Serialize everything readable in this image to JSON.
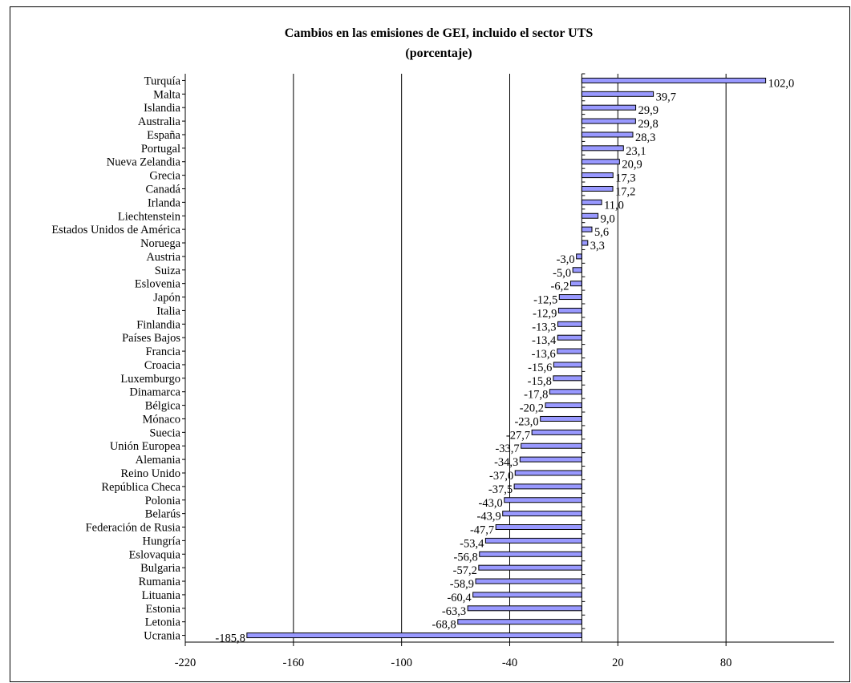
{
  "chart_data": {
    "type": "bar",
    "orientation": "horizontal",
    "title": "Cambios en las emisiones de GEI, incluido el sector UTS",
    "subtitle": "(porcentaje)",
    "xlabel": "",
    "ylabel": "",
    "xlim": [
      -220,
      140
    ],
    "x_ticks": [
      -220,
      -160,
      -100,
      -40,
      20,
      80
    ],
    "x_tick_labels": [
      "-220",
      "-160",
      "-100",
      "-40",
      "20",
      "80"
    ],
    "grid": "vertical",
    "legend": "none",
    "bar_color": "#9999ff",
    "categories": [
      "Turquía",
      "Malta",
      "Islandia",
      "Australia",
      "España",
      "Portugal",
      "Nueva Zelandia",
      "Grecia",
      "Canadá",
      "Irlanda",
      "Liechtenstein",
      "Estados Unidos de América",
      "Noruega",
      "Austria",
      "Suiza",
      "Eslovenia",
      "Japón",
      "Italia",
      "Finlandia",
      "Países Bajos",
      "Francia",
      "Croacia",
      "Luxemburgo",
      "Dinamarca",
      "Bélgica",
      "Mónaco",
      "Suecia",
      "Unión Europea",
      "Alemania",
      "Reino Unido",
      "República Checa",
      "Polonia",
      "Belarús",
      "Federación de Rusia",
      "Hungría",
      "Eslovaquia",
      "Bulgaria",
      "Rumania",
      "Lituania",
      "Estonia",
      "Letonia",
      "Ucrania"
    ],
    "values": [
      102.0,
      39.7,
      29.9,
      29.8,
      28.3,
      23.1,
      20.9,
      17.3,
      17.2,
      11.0,
      9.0,
      5.6,
      3.3,
      -3.0,
      -5.0,
      -6.2,
      -12.5,
      -12.9,
      -13.3,
      -13.4,
      -13.6,
      -15.6,
      -15.8,
      -17.8,
      -20.2,
      -23.0,
      -27.7,
      -33.7,
      -34.3,
      -37.0,
      -37.5,
      -43.0,
      -43.9,
      -47.7,
      -53.4,
      -56.8,
      -57.2,
      -58.9,
      -60.4,
      -63.3,
      -68.8,
      -185.8
    ],
    "value_labels": [
      "102,0",
      "39,7",
      "29,9",
      "29,8",
      "28,3",
      "23,1",
      "20,9",
      "17,3",
      "17,2",
      "11,0",
      "9,0",
      "5,6",
      "3,3",
      "-3,0",
      "-5,0",
      "-6,2",
      "-12,5",
      "-12,9",
      "-13,3",
      "-13,4",
      "-13,6",
      "-15,6",
      "-15,8",
      "-17,8",
      "-20,2",
      "-23,0",
      "-27,7",
      "-33,7",
      "-34,3",
      "-37,0",
      "-37,5",
      "-43,0",
      "-43,9",
      "-47,7",
      "-53,4",
      "-56,8",
      "-57,2",
      "-58,9",
      "-60,4",
      "-63,3",
      "-68,8",
      "-185,8"
    ]
  }
}
